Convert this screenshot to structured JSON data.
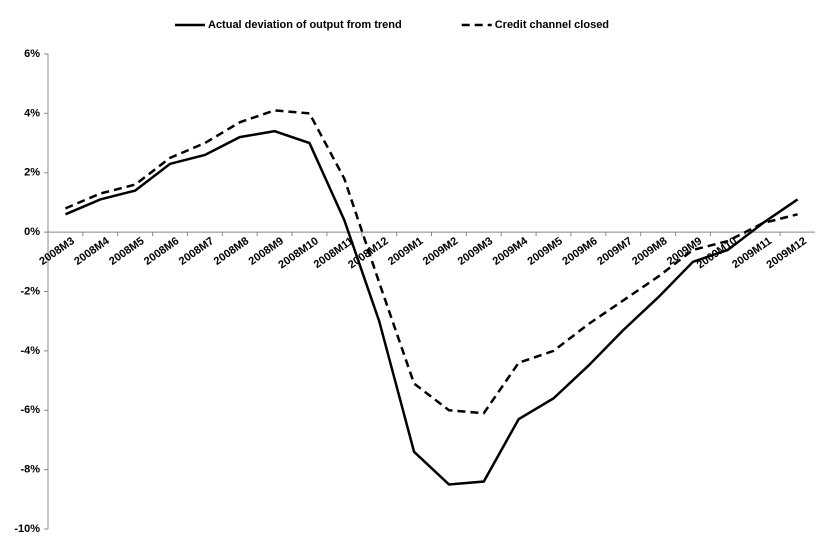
{
  "chart_data": {
    "type": "line",
    "categories": [
      "2008M3",
      "2008M4",
      "2008M5",
      "2008M6",
      "2008M7",
      "2008M8",
      "2008M9",
      "2008M10",
      "2008M11",
      "2008M12",
      "2009M1",
      "2009M2",
      "2009M3",
      "2009M4",
      "2009M5",
      "2009M6",
      "2009M7",
      "2009M8",
      "2009M9",
      "2009M10",
      "2009M11",
      "2009M12"
    ],
    "series": [
      {
        "name": "Actual deviation of output from trend",
        "color": "#000000",
        "dash": "solid",
        "values": [
          0.6,
          1.1,
          1.4,
          2.3,
          2.6,
          3.2,
          3.4,
          3.0,
          0.4,
          -3.0,
          -7.4,
          -8.5,
          -8.4,
          -6.3,
          -5.6,
          -4.5,
          -3.3,
          -2.2,
          -1.0,
          -0.6,
          0.3,
          1.1
        ]
      },
      {
        "name": "Credit channel closed",
        "color": "#000000",
        "dash": "dashed",
        "values": [
          0.8,
          1.3,
          1.6,
          2.5,
          3.0,
          3.7,
          4.1,
          4.0,
          1.8,
          -1.7,
          -5.1,
          -6.0,
          -6.1,
          -4.4,
          -4.0,
          -3.1,
          -2.3,
          -1.5,
          -0.6,
          -0.3,
          0.3,
          0.6
        ]
      }
    ],
    "ylim": [
      -10,
      6
    ],
    "yticks": [
      {
        "value": -10,
        "label": "-10%"
      },
      {
        "value": -8,
        "label": "-8%"
      },
      {
        "value": -6,
        "label": "-6%"
      },
      {
        "value": -4,
        "label": "-4%"
      },
      {
        "value": -2,
        "label": "-2%"
      },
      {
        "value": 0,
        "label": "0%"
      },
      {
        "value": 2,
        "label": "2%"
      },
      {
        "value": 4,
        "label": "4%"
      },
      {
        "value": 6,
        "label": "6%"
      }
    ],
    "grid": false,
    "legend": "top"
  }
}
